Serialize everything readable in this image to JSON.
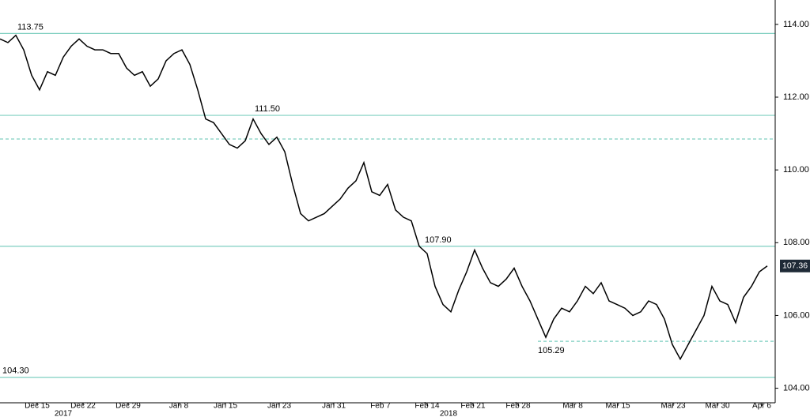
{
  "chart_data": {
    "type": "line",
    "series": [
      {
        "color": "#000000",
        "values": [
          113.6,
          113.5,
          113.7,
          113.3,
          112.6,
          112.2,
          112.7,
          112.6,
          113.1,
          113.4,
          113.6,
          113.4,
          113.3,
          113.3,
          113.2,
          113.2,
          112.8,
          112.6,
          112.7,
          112.3,
          112.5,
          113.0,
          113.2,
          113.3,
          112.9,
          112.2,
          111.4,
          111.3,
          111.0,
          110.7,
          110.6,
          110.8,
          111.4,
          111.0,
          110.7,
          110.9,
          110.5,
          109.6,
          108.8,
          108.6,
          108.7,
          108.8,
          109.0,
          109.2,
          109.5,
          109.7,
          110.2,
          109.4,
          109.3,
          109.6,
          108.9,
          108.7,
          108.6,
          107.9,
          107.7,
          106.8,
          106.3,
          106.1,
          106.7,
          107.2,
          107.8,
          107.3,
          106.9,
          106.8,
          107.0,
          107.3,
          106.8,
          106.4,
          105.9,
          105.4,
          105.9,
          106.2,
          106.1,
          106.4,
          106.8,
          106.6,
          106.9,
          106.4,
          106.3,
          106.2,
          106.0,
          106.1,
          106.4,
          106.3,
          105.9,
          105.2,
          104.8,
          105.2,
          105.6,
          106.0,
          106.8,
          106.4,
          106.3,
          105.8,
          106.5,
          106.8,
          107.2,
          107.36
        ]
      }
    ],
    "xlim": [
      0,
      98
    ],
    "ylim": [
      103.6,
      114.67
    ],
    "yticks": [
      {
        "value": 104,
        "label": "104.00"
      },
      {
        "value": 106,
        "label": "106.00"
      },
      {
        "value": 108,
        "label": "108.00"
      },
      {
        "value": 110,
        "label": "110.00"
      },
      {
        "value": 112,
        "label": "112.00"
      },
      {
        "value": 114,
        "label": "114.00"
      }
    ],
    "xticks": [
      {
        "value": 4.7,
        "label": "Dec 15"
      },
      {
        "value": 10.5,
        "label": "Dec 22"
      },
      {
        "value": 16.2,
        "label": "Dec 29"
      },
      {
        "value": 22.6,
        "label": "Jan 8"
      },
      {
        "value": 28.5,
        "label": "Jan 15"
      },
      {
        "value": 35.3,
        "label": "Jan 23"
      },
      {
        "value": 42.2,
        "label": "Jan 31"
      },
      {
        "value": 48.1,
        "label": "Feb 7"
      },
      {
        "value": 54,
        "label": "Feb 14"
      },
      {
        "value": 59.8,
        "label": "Feb 21"
      },
      {
        "value": 65.5,
        "label": "Feb 28"
      },
      {
        "value": 72.4,
        "label": "Mar 8"
      },
      {
        "value": 78.1,
        "label": "Mar 15"
      },
      {
        "value": 85.1,
        "label": "Mar 23"
      },
      {
        "value": 90.7,
        "label": "Mar 30"
      },
      {
        "value": 96.3,
        "label": "Apr 6"
      }
    ],
    "year_labels": [
      {
        "value": 8.0,
        "label": "2017"
      },
      {
        "value": 56.7,
        "label": "2018"
      }
    ],
    "reference_lines": [
      {
        "value": 113.75,
        "label": "113.75",
        "x": 2.2,
        "style": "solid"
      },
      {
        "value": 111.5,
        "label": "111.50",
        "x": 32.2,
        "style": "solid"
      },
      {
        "value": 110.85,
        "style": "dashed"
      },
      {
        "value": 107.9,
        "label": "107.90",
        "x": 53.7,
        "style": "solid"
      },
      {
        "value": 105.29,
        "label": "105.29",
        "x": 68,
        "style": "dashed"
      },
      {
        "value": 104.3,
        "label": "104.30",
        "x": 0.3,
        "style": "solid"
      }
    ],
    "reference_color": "#7fcfc0",
    "last_value": 107.36
  }
}
